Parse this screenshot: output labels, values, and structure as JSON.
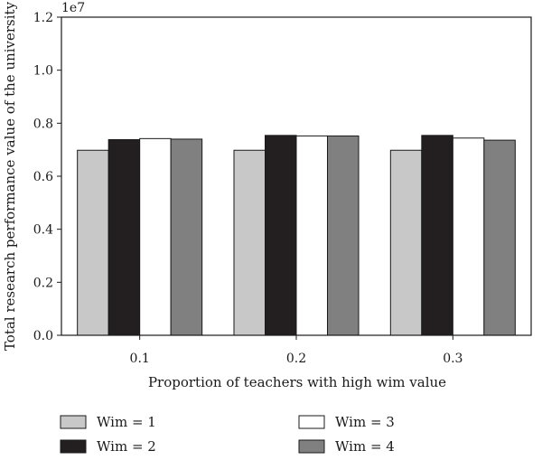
{
  "chart_data": {
    "type": "bar",
    "xlabel": "Proportion of teachers with high wim value",
    "ylabel": "Total research performance value of the university",
    "y_multiplier": "1e7",
    "ylim": [
      0,
      1.2
    ],
    "y_ticks": [
      "0.0",
      "0.2",
      "0.4",
      "0.6",
      "0.8",
      "1.0",
      "1.2"
    ],
    "categories": [
      "0.1",
      "0.2",
      "0.3"
    ],
    "series": [
      {
        "name": "Wim = 1",
        "color": "#c8c8c8",
        "values": [
          0.698,
          0.698,
          0.698
        ]
      },
      {
        "name": "Wim = 2",
        "color": "#231f20",
        "values": [
          0.738,
          0.754,
          0.754
        ]
      },
      {
        "name": "Wim = 3",
        "color": "#ffffff",
        "values": [
          0.742,
          0.752,
          0.744
        ]
      },
      {
        "name": "Wim = 4",
        "color": "#808080",
        "values": [
          0.74,
          0.752,
          0.736
        ]
      }
    ],
    "grid": false,
    "legend_position": "bottom"
  }
}
